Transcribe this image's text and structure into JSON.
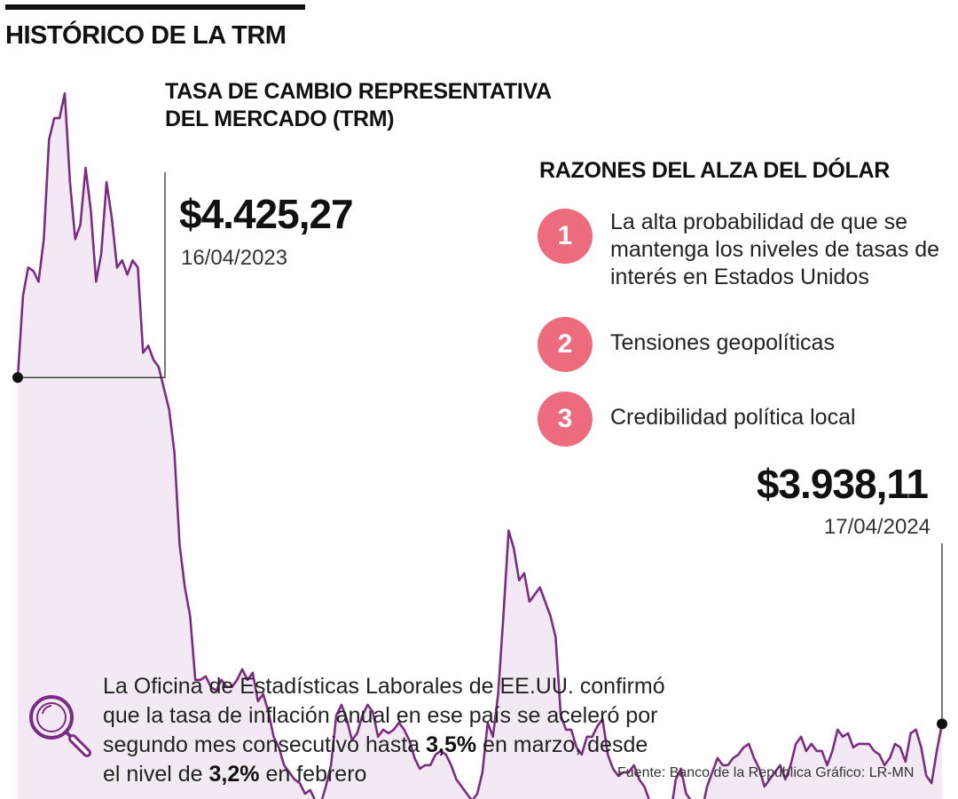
{
  "header": {
    "title": "HISTÓRICO DE LA TRM",
    "subtitle_line1": "TASA DE CAMBIO REPRESENTATIVA",
    "subtitle_line2": "DEL MERCADO (TRM)"
  },
  "annotations": {
    "start_value": "$4.425,27",
    "start_date": "16/04/2023",
    "end_value": "$3.938,11",
    "end_date": "17/04/2024"
  },
  "reasons": {
    "title": "RAZONES DEL ALZA DEL DÓLAR",
    "items": [
      {
        "number": "1",
        "text": "La alta probabilidad de que se mantenga los niveles de tasas de interés en Estados Unidos"
      },
      {
        "number": "2",
        "text": "Tensiones geopolíticas"
      },
      {
        "number": "3",
        "text": "Credibilidad política local"
      }
    ]
  },
  "note": {
    "text_1": "La Oficina de Estadísticas Laborales de EE.UU. confirmó que la tasa de inflación anual en ese país se aceleró por segundo mes consecutivo hasta ",
    "bold_1": "3,5%",
    "text_2": " en marzo, desde el nivel de ",
    "bold_2": "3,2%",
    "text_3": " en febrero"
  },
  "source": "Fuente: Banco de la República  Gráfico: LR-MN",
  "colors": {
    "line": "#7b2d83",
    "area": "#f3e9f4",
    "badge": "#ec6b7c",
    "lens": "#7b2d83"
  },
  "icons": {
    "note_icon": "magnifier-icon"
  },
  "chart_data": {
    "type": "area",
    "title": "TASA DE CAMBIO REPRESENTATIVA DEL MERCADO (TRM)",
    "x_range": [
      "16/04/2023",
      "17/04/2024"
    ],
    "start": {
      "date": "16/04/2023",
      "value": 4425.27
    },
    "end": {
      "date": "17/04/2024",
      "value": 3938.11
    },
    "ylim": [
      3800,
      4900
    ],
    "grid": false,
    "series": [
      {
        "values": [
          4425.27,
          4540,
          4580,
          4575,
          4560,
          4620,
          4760,
          4790,
          4790,
          4825,
          4700,
          4620,
          4640,
          4720,
          4660,
          4560,
          4600,
          4700,
          4650,
          4580,
          4590,
          4570,
          4590,
          4580,
          4460,
          4470,
          4450,
          4440,
          4410,
          4380,
          4320,
          4190,
          4130,
          4090,
          4000,
          4000,
          4005,
          3990,
          3985,
          4000,
          3990,
          3990,
          4000,
          4015,
          4000,
          4010,
          3970,
          3980,
          3955,
          3920,
          3905,
          3880,
          3870,
          3860,
          3855,
          3840,
          3845,
          3830,
          3825,
          3850,
          3880,
          3950,
          3965,
          3945,
          3915,
          3925,
          3950,
          3965,
          3955,
          3920,
          3930,
          3925,
          3930,
          3940,
          3930,
          3915,
          3890,
          3875,
          3880,
          3880,
          3895,
          3900,
          3895,
          3880,
          3860,
          3850,
          3840,
          3830,
          3840,
          3870,
          3940,
          3920,
          3980,
          4090,
          4210,
          4185,
          4140,
          4150,
          4110,
          4120,
          4130,
          4110,
          4090,
          4060,
          3950,
          3930,
          3930,
          3905,
          3895,
          3920,
          3920,
          3935,
          3945,
          3895,
          3875,
          3865,
          3870,
          3870,
          3880,
          3860,
          3850,
          3830,
          3815,
          3800,
          3810,
          3810,
          3860,
          3875,
          3840,
          3830,
          3830,
          3815,
          3850,
          3870,
          3890,
          3880,
          3880,
          3890,
          3895,
          3905,
          3910,
          3890,
          3875,
          3850,
          3860,
          3870,
          3880,
          3860,
          3880,
          3910,
          3920,
          3900,
          3910,
          3900,
          3900,
          3880,
          3900,
          3930,
          3920,
          3925,
          3905,
          3910,
          3910,
          3910,
          3900,
          3895,
          3880,
          3890,
          3910,
          3905,
          3885,
          3925,
          3930,
          3905,
          3865,
          3855,
          3900,
          3938.11
        ]
      }
    ]
  }
}
